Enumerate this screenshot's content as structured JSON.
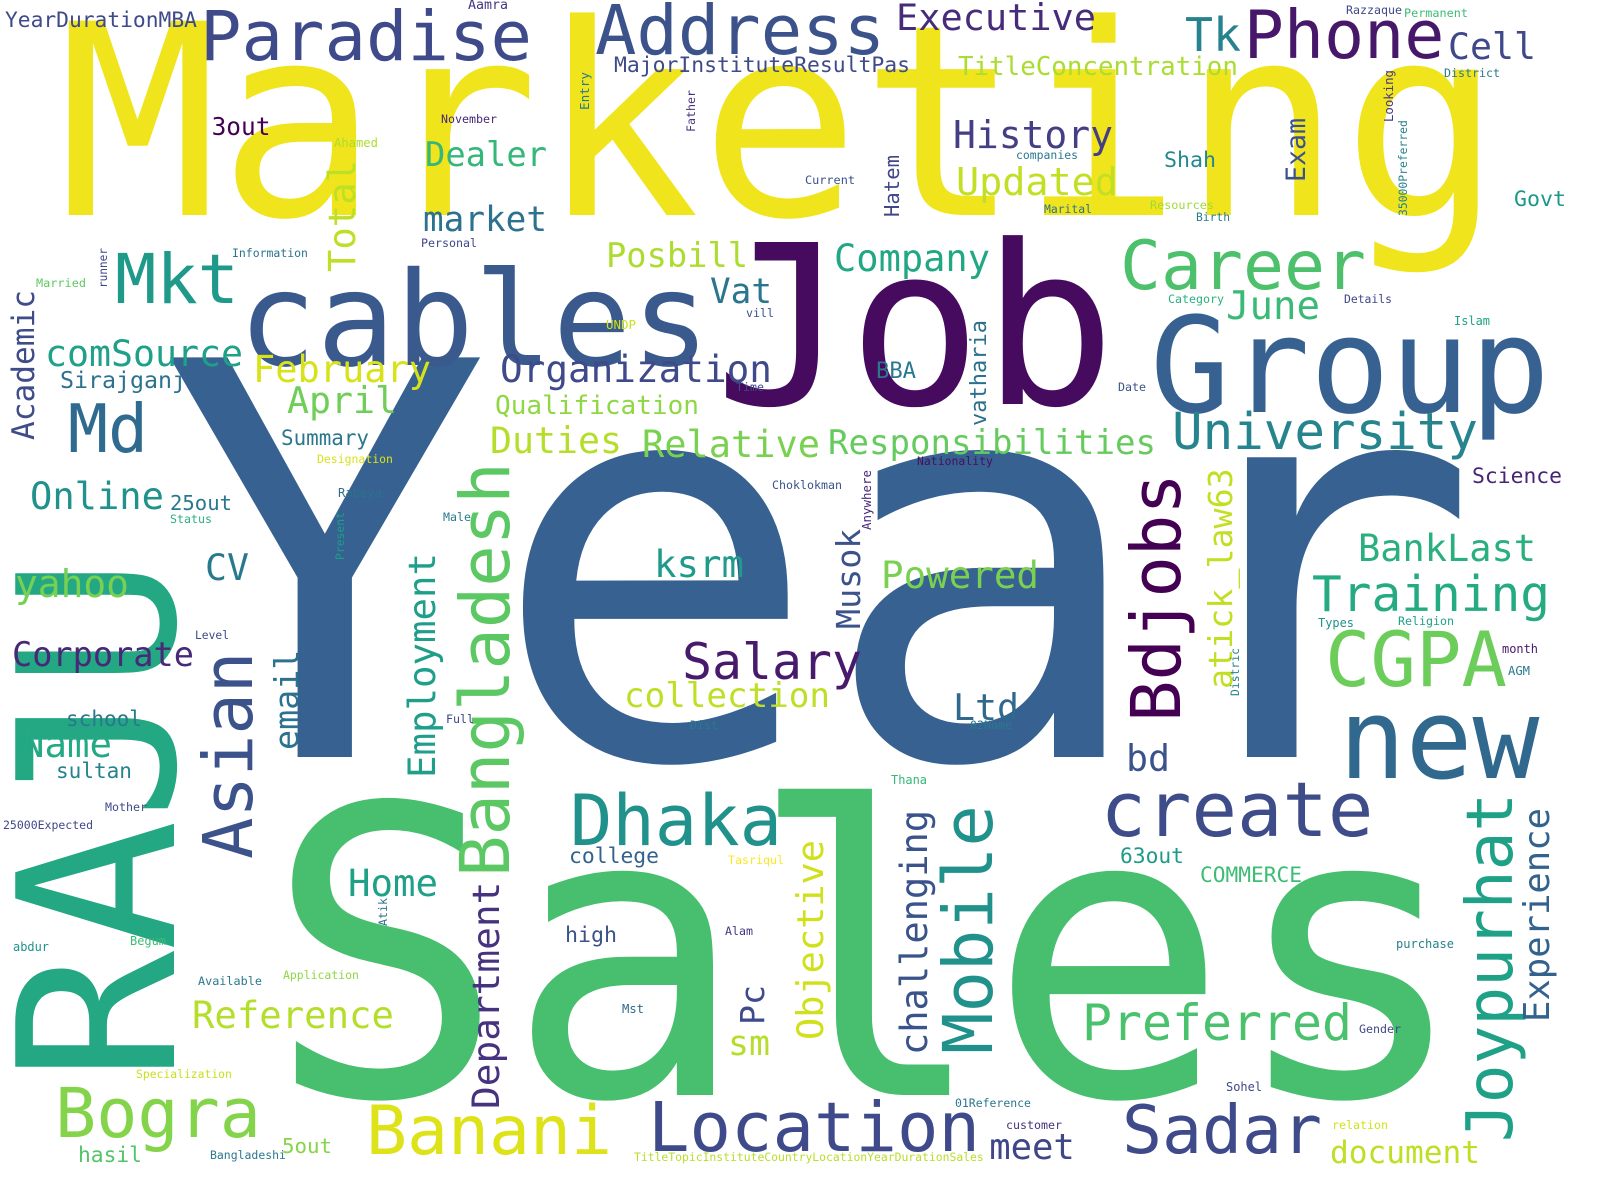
{
  "words": [
    {
      "text": "Year",
      "color": "#366190"
    },
    {
      "text": "Marketing",
      "color": "#f0e51c"
    },
    {
      "text": "Sales",
      "color": "#47bf6e"
    },
    {
      "text": "Job",
      "color": "#460b5f"
    },
    {
      "text": "RAJU",
      "color": "#23a883"
    },
    {
      "text": "cables",
      "color": "#3a5a8e"
    },
    {
      "text": "Group",
      "color": "#366190"
    },
    {
      "text": "new",
      "color": "#30688e"
    },
    {
      "text": "create",
      "color": "#3e4c8a"
    },
    {
      "text": "Career",
      "color": "#4dc06c"
    },
    {
      "text": "Address",
      "color": "#3b528b"
    },
    {
      "text": "Paradise",
      "color": "#3e4a89"
    },
    {
      "text": "Phone",
      "color": "#47176a"
    },
    {
      "text": "Mkt",
      "color": "#1f9a8a"
    },
    {
      "text": "Md",
      "color": "#2f6b8e"
    },
    {
      "text": "Asian",
      "color": "#3b528b"
    },
    {
      "text": "Bangladesh",
      "color": "#5cc863"
    },
    {
      "text": "Dhaka",
      "color": "#21918c"
    },
    {
      "text": "CGPA",
      "color": "#6ccd5a"
    },
    {
      "text": "Bdjobs",
      "color": "#440154"
    },
    {
      "text": "Joypurhat",
      "color": "#1fa187"
    },
    {
      "text": "Mobile",
      "color": "#21918c"
    },
    {
      "text": "Location",
      "color": "#3e4a89"
    },
    {
      "text": "Sadar",
      "color": "#3e4a89"
    },
    {
      "text": "Banani",
      "color": "#dde318"
    },
    {
      "text": "Bogra",
      "color": "#84d44b"
    },
    {
      "text": "Preferred",
      "color": "#4ac16d"
    },
    {
      "text": "Training",
      "color": "#25ab82"
    },
    {
      "text": "University",
      "color": "#25848e"
    },
    {
      "text": "Salary",
      "color": "#481a6c"
    },
    {
      "text": "Organization",
      "color": "#3e4a89"
    },
    {
      "text": "Executive",
      "color": "#472c7a"
    },
    {
      "text": "Tk",
      "color": "#26828e"
    },
    {
      "text": "Cell",
      "color": "#3f4889"
    },
    {
      "text": "TitleConcentration",
      "color": "#aadc32"
    },
    {
      "text": "MajorInstituteResultPas",
      "color": "#3e4a89"
    },
    {
      "text": "History",
      "color": "#433e85"
    },
    {
      "text": "Updated",
      "color": "#c2df23"
    },
    {
      "text": "Dealer",
      "color": "#35b779"
    },
    {
      "text": "market",
      "color": "#2c728e"
    },
    {
      "text": "Company",
      "color": "#22a785"
    },
    {
      "text": "June",
      "color": "#3aba76"
    },
    {
      "text": "Posbill",
      "color": "#addc30"
    },
    {
      "text": "Vat",
      "color": "#2a768e"
    },
    {
      "text": "Total",
      "color": "#bddf26"
    },
    {
      "text": "comSource",
      "color": "#1fa088"
    },
    {
      "text": "February",
      "color": "#d8e219"
    },
    {
      "text": "April",
      "color": "#6ece58"
    },
    {
      "text": "Sirajganj",
      "color": "#2c728e"
    },
    {
      "text": "Qualification",
      "color": "#8fd744"
    },
    {
      "text": "Duties",
      "color": "#b5de2b"
    },
    {
      "text": "Relative",
      "color": "#7ad151"
    },
    {
      "text": "Responsibilities",
      "color": "#65cb5e"
    },
    {
      "text": "Summary",
      "color": "#2a788e"
    },
    {
      "text": "Academic",
      "color": "#3e4c8a"
    },
    {
      "text": "Online",
      "color": "#21918c"
    },
    {
      "text": "25out",
      "color": "#2a788e"
    },
    {
      "text": "CV",
      "color": "#29798e"
    },
    {
      "text": "yahoo",
      "color": "#75d054"
    },
    {
      "text": "Corporate",
      "color": "#482878"
    },
    {
      "text": "ksrm",
      "color": "#1e9b8a"
    },
    {
      "text": "Powered",
      "color": "#7ad151"
    },
    {
      "text": "BankLast",
      "color": "#2ab07f"
    },
    {
      "text": "collection",
      "color": "#bddf26"
    },
    {
      "text": "Ltd",
      "color": "#31688e"
    },
    {
      "text": "Name",
      "color": "#23a983"
    },
    {
      "text": "school",
      "color": "#2a788e"
    },
    {
      "text": "sultan",
      "color": "#26828e"
    },
    {
      "text": "email",
      "color": "#2c728e"
    },
    {
      "text": "Employment",
      "color": "#1f9e89"
    },
    {
      "text": "Musok",
      "color": "#3b528b"
    },
    {
      "text": "atick_law63",
      "color": "#c2df23"
    },
    {
      "text": "bd",
      "color": "#3b528b"
    },
    {
      "text": "Experience",
      "color": "#33638d"
    },
    {
      "text": "Home",
      "color": "#1fa187"
    },
    {
      "text": "Department",
      "color": "#46327e"
    },
    {
      "text": "Objective",
      "color": "#d0e11c"
    },
    {
      "text": "challenging",
      "color": "#3a538b"
    },
    {
      "text": "Pc",
      "color": "#3e4a89"
    },
    {
      "text": "sm",
      "color": "#b5de2b"
    },
    {
      "text": "Reference",
      "color": "#b5de2b"
    },
    {
      "text": "high",
      "color": "#3b528b"
    },
    {
      "text": "college",
      "color": "#33638d"
    },
    {
      "text": "63out",
      "color": "#1f9a8a"
    },
    {
      "text": "COMMERCE",
      "color": "#3dbc74"
    },
    {
      "text": "meet",
      "color": "#3f4788"
    },
    {
      "text": "document",
      "color": "#bddf26"
    },
    {
      "text": "5out",
      "color": "#86d549"
    },
    {
      "text": "hasil",
      "color": "#52c569"
    },
    {
      "text": "Exam",
      "color": "#3b528b"
    },
    {
      "text": "Shah",
      "color": "#23898e"
    },
    {
      "text": "Hatem",
      "color": "#404688"
    },
    {
      "text": "Govt",
      "color": "#1f988b"
    },
    {
      "text": "BBA",
      "color": "#2a788e"
    },
    {
      "text": "vatharia",
      "color": "#2d708e"
    },
    {
      "text": "Science",
      "color": "#482475"
    },
    {
      "text": "3out",
      "color": "#440154"
    },
    {
      "text": "YearDurationMBA",
      "color": "#3e4a89"
    },
    {
      "text": "Aamra",
      "color": "#453781"
    },
    {
      "text": "Razzaque",
      "color": "#3e4a89"
    },
    {
      "text": "Permanent",
      "color": "#3dbc74"
    },
    {
      "text": "District",
      "color": "#2a788e"
    },
    {
      "text": "Entry",
      "color": "#29798e"
    },
    {
      "text": "Father",
      "color": "#46337f"
    },
    {
      "text": "November",
      "color": "#482677"
    },
    {
      "text": "Ahamed",
      "color": "#addc30"
    },
    {
      "text": "Looking",
      "color": "#453882"
    },
    {
      "text": "companies",
      "color": "#2a788e"
    },
    {
      "text": "35000Preferred",
      "color": "#25838e"
    },
    {
      "text": "Current",
      "color": "#3b528b"
    },
    {
      "text": "Resources",
      "color": "#a0da39"
    },
    {
      "text": "Birth",
      "color": "#287c8e"
    },
    {
      "text": "Marital",
      "color": "#2c728e"
    },
    {
      "text": "Personal",
      "color": "#3f4889"
    },
    {
      "text": "Information",
      "color": "#2b748e"
    },
    {
      "text": "Married",
      "color": "#5ec962"
    },
    {
      "text": "runner",
      "color": "#3e4a89"
    },
    {
      "text": "Category",
      "color": "#2ab07f"
    },
    {
      "text": "Details",
      "color": "#404688"
    },
    {
      "text": "Islam",
      "color": "#20a486"
    },
    {
      "text": "vill",
      "color": "#3b528b"
    },
    {
      "text": "UNDP",
      "color": "#cde11d"
    },
    {
      "text": "Time",
      "color": "#3e4a89"
    },
    {
      "text": "Date",
      "color": "#3b528b"
    },
    {
      "text": "Designation",
      "color": "#d8e219"
    },
    {
      "text": "Nationality",
      "color": "#471063"
    },
    {
      "text": "Choklokman",
      "color": "#3b528b"
    },
    {
      "text": "Anywhere",
      "color": "#482878"
    },
    {
      "text": "Rabeya",
      "color": "#2d708e"
    },
    {
      "text": "Status",
      "color": "#2ab07f"
    },
    {
      "text": "Male",
      "color": "#29798e"
    },
    {
      "text": "Present",
      "color": "#1f9e89"
    },
    {
      "text": "Level",
      "color": "#3e4a89"
    },
    {
      "text": "Types",
      "color": "#21918c"
    },
    {
      "text": "Religion",
      "color": "#1fa088"
    },
    {
      "text": "month",
      "color": "#48186a"
    },
    {
      "text": "AGM",
      "color": "#2a788e"
    },
    {
      "text": "Distric",
      "color": "#26828e"
    },
    {
      "text": "Full",
      "color": "#404688"
    },
    {
      "text": "Dist",
      "color": "#2a788e"
    },
    {
      "text": "02Name",
      "color": "#2a788e"
    },
    {
      "text": "Thana",
      "color": "#35b779"
    },
    {
      "text": "Mother",
      "color": "#3e4a89"
    },
    {
      "text": "25000Expected",
      "color": "#3f4889"
    },
    {
      "text": "Tasriqul",
      "color": "#fde725"
    },
    {
      "text": "Atik",
      "color": "#2d708e"
    },
    {
      "text": "Alam",
      "color": "#453781"
    },
    {
      "text": "Begum",
      "color": "#3dbc74"
    },
    {
      "text": "abdur",
      "color": "#21918c"
    },
    {
      "text": "Available",
      "color": "#2a788e"
    },
    {
      "text": "Application",
      "color": "#8fd744"
    },
    {
      "text": "Mst",
      "color": "#31688e"
    },
    {
      "text": "Gender",
      "color": "#3e4a89"
    },
    {
      "text": "purchase",
      "color": "#26828e"
    },
    {
      "text": "Specialization",
      "color": "#c8e020"
    },
    {
      "text": "Sohel",
      "color": "#404688"
    },
    {
      "text": "01Reference",
      "color": "#2a788e"
    },
    {
      "text": "customer",
      "color": "#46337f"
    },
    {
      "text": "relation",
      "color": "#d0e11c"
    },
    {
      "text": "Bangladeshi",
      "color": "#2a788e"
    },
    {
      "text": "TitleTopicInstituteCountryLocationYearDurationSales",
      "color": "#b8de29"
    }
  ]
}
